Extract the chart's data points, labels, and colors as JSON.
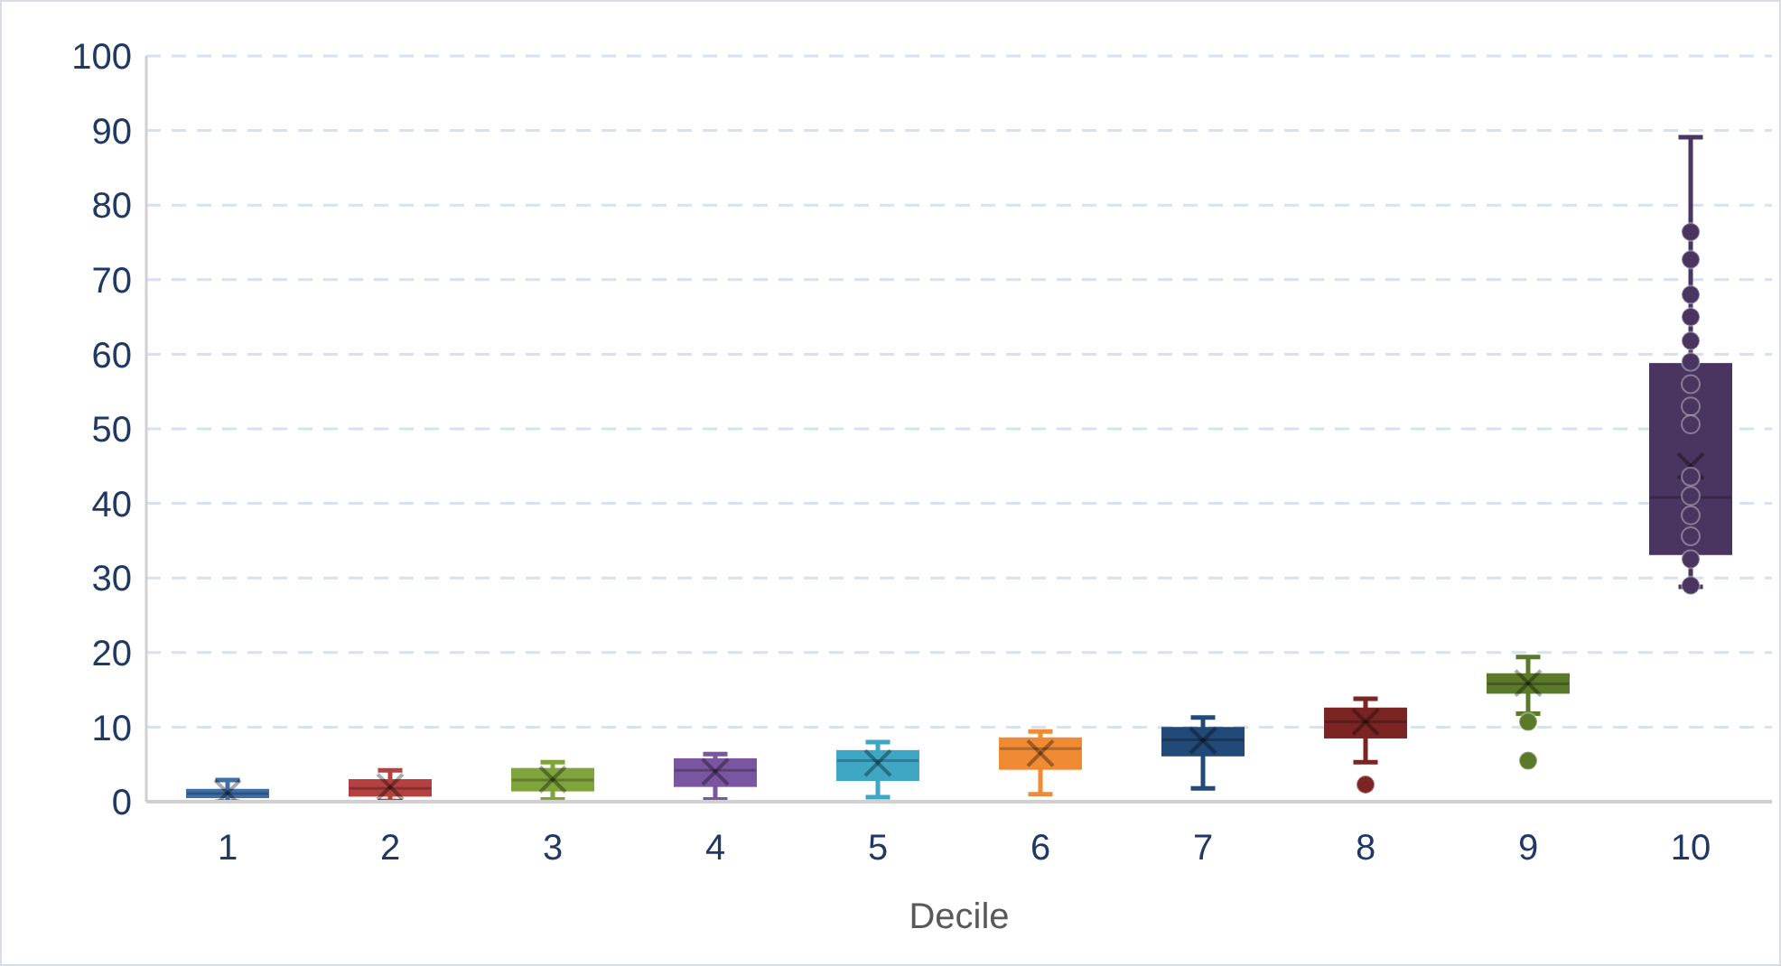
{
  "chart_data": {
    "type": "box",
    "xlabel": "Decile",
    "categories": [
      "1",
      "2",
      "3",
      "4",
      "5",
      "6",
      "7",
      "8",
      "9",
      "10"
    ],
    "colors": [
      "#3f6fa8",
      "#b5403f",
      "#7fa43c",
      "#7a55a0",
      "#3fa6c4",
      "#f08a33",
      "#224a78",
      "#7a2424",
      "#5a7a2a",
      "#4a3560"
    ],
    "boxes": [
      {
        "low": 0,
        "q1": 0.6,
        "q3": 1.6,
        "median": 1.1,
        "high": 2.9,
        "mean": 1.2
      },
      {
        "low": 0.1,
        "q1": 0.8,
        "q3": 2.9,
        "median": 1.8,
        "high": 4.2,
        "mean": 2
      },
      {
        "low": 0.3,
        "q1": 1.5,
        "q3": 4.4,
        "median": 2.9,
        "high": 5.3,
        "mean": 3
      },
      {
        "low": 0.3,
        "q1": 2.1,
        "q3": 5.7,
        "median": 4.2,
        "high": 6.4,
        "mean": 4
      },
      {
        "low": 0.6,
        "q1": 2.9,
        "q3": 6.8,
        "median": 5.5,
        "high": 8,
        "mean": 5.2
      },
      {
        "low": 1,
        "q1": 4.4,
        "q3": 8.5,
        "median": 7.1,
        "high": 9.4,
        "mean": 6.5
      },
      {
        "low": 1.8,
        "q1": 6.2,
        "q3": 9.9,
        "median": 8.3,
        "high": 11.3,
        "mean": 8.2
      },
      {
        "low": 5.3,
        "q1": 8.6,
        "q3": 12.5,
        "median": 10.7,
        "high": 13.8,
        "mean": 10.7,
        "outliers": [
          2.3
        ]
      },
      {
        "low": 11.8,
        "q1": 14.6,
        "q3": 17.1,
        "median": 15.8,
        "high": 19.4,
        "mean": 15.9,
        "outliers": [
          10.7,
          5.5
        ]
      },
      {
        "low": 28.8,
        "q1": 33.2,
        "q3": 58.7,
        "median": 40.8,
        "high": 89.1,
        "mean": 45,
        "outliers": [
          76.4,
          72.7,
          68,
          65,
          61.8,
          59,
          56,
          53,
          50.6,
          43.6,
          41,
          38.4,
          35.6,
          32.5,
          29
        ]
      }
    ],
    "ylim": [
      0,
      100
    ],
    "yticks": [
      0,
      10,
      20,
      30,
      40,
      50,
      60,
      70,
      80,
      90,
      100
    ],
    "grid": "y",
    "legend": false
  }
}
